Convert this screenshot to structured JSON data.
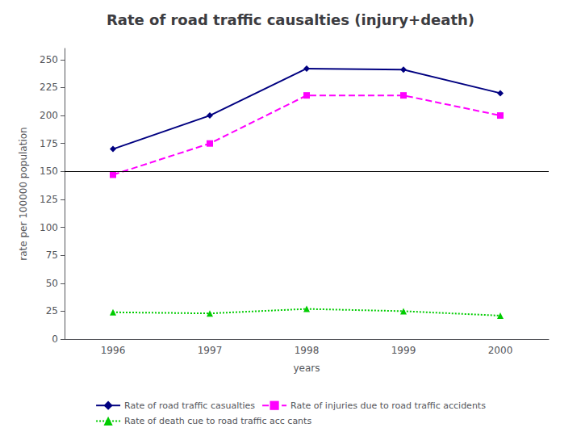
{
  "chart_data": {
    "type": "line",
    "title": "Rate of road traffic causalties (injury+death)",
    "x_label": "years",
    "y_label": "rate per 100000 population",
    "categories": [
      "1996",
      "1997",
      "1998",
      "1999",
      "2000"
    ],
    "series": [
      {
        "name": "Rate of road traffic casualties",
        "color": "#000080",
        "marker": "diamond",
        "line_style": "solid",
        "values": [
          170,
          200,
          242,
          241,
          220
        ]
      },
      {
        "name": "Rate of injuries due to road traffic accidents",
        "color": "#FF00FF",
        "marker": "square",
        "line_style": "dashed",
        "values": [
          147,
          175,
          218,
          218,
          200
        ]
      },
      {
        "name": "Rate of death cue to road traffic acc cants",
        "color": "#00CC00",
        "marker": "triangle",
        "line_style": "dotted",
        "values": [
          24,
          23,
          27,
          25,
          21
        ]
      }
    ],
    "hline": {
      "value": 150,
      "color": "#000000"
    },
    "ylim": [
      0,
      260
    ],
    "yticks": [
      0,
      25,
      50,
      75,
      100,
      125,
      150,
      175,
      200,
      225,
      250
    ],
    "grid": false,
    "legend": "bottom"
  }
}
